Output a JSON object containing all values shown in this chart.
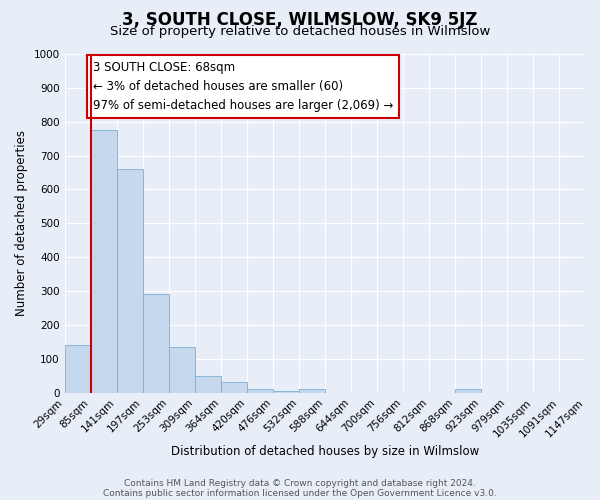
{
  "title": "3, SOUTH CLOSE, WILMSLOW, SK9 5JZ",
  "subtitle": "Size of property relative to detached houses in Wilmslow",
  "xlabel": "Distribution of detached houses by size in Wilmslow",
  "ylabel": "Number of detached properties",
  "bar_values": [
    140,
    775,
    660,
    290,
    135,
    50,
    30,
    10,
    5,
    10,
    0,
    0,
    0,
    0,
    0,
    10,
    0,
    0,
    0,
    0
  ],
  "bin_labels": [
    "29sqm",
    "85sqm",
    "141sqm",
    "197sqm",
    "253sqm",
    "309sqm",
    "364sqm",
    "420sqm",
    "476sqm",
    "532sqm",
    "588sqm",
    "644sqm",
    "700sqm",
    "756sqm",
    "812sqm",
    "868sqm",
    "923sqm",
    "979sqm",
    "1035sqm",
    "1091sqm",
    "1147sqm"
  ],
  "bar_color": "#c5d8ee",
  "bar_edge_color": "#7aafd4",
  "vline_color": "#cc0000",
  "annotation_text": "3 SOUTH CLOSE: 68sqm\n← 3% of detached houses are smaller (60)\n97% of semi-detached houses are larger (2,069) →",
  "annotation_box_facecolor": "#ffffff",
  "annotation_box_edgecolor": "#cc0000",
  "ylim": [
    0,
    1000
  ],
  "yticks": [
    0,
    100,
    200,
    300,
    400,
    500,
    600,
    700,
    800,
    900,
    1000
  ],
  "background_color": "#e8eef8",
  "grid_color": "#ffffff",
  "title_fontsize": 12,
  "subtitle_fontsize": 9.5,
  "ylabel_fontsize": 8.5,
  "xlabel_fontsize": 8.5,
  "tick_fontsize": 7.5,
  "annotation_fontsize": 8.5,
  "footer_fontsize": 6.5,
  "footer_text": "Contains HM Land Registry data © Crown copyright and database right 2024.\nContains public sector information licensed under the Open Government Licence v3.0."
}
